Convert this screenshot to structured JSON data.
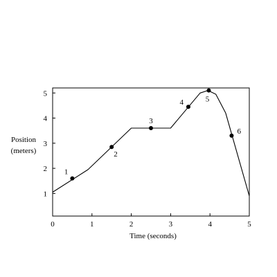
{
  "chart_data": {
    "type": "line",
    "title": "",
    "xlabel": "Time (seconds)",
    "ylabel": [
      "Position",
      "(meters)"
    ],
    "xlim": [
      0,
      5
    ],
    "ylim": [
      0.1,
      5.2
    ],
    "xticks": [
      "0",
      "1",
      "2",
      "3",
      "4",
      "5"
    ],
    "yticks": [
      "1",
      "2",
      "3",
      "4",
      "5"
    ],
    "grid": false,
    "series": [
      {
        "x": [
          0,
          0.9,
          2,
          3,
          3.75,
          3.95,
          4.15,
          4.4,
          5
        ],
        "y": [
          1.05,
          1.95,
          3.6,
          3.6,
          5.0,
          5.1,
          4.95,
          4.2,
          0.9
        ]
      }
    ],
    "points": [
      {
        "label": "1",
        "x": 0.5,
        "y": 1.6
      },
      {
        "label": "2",
        "x": 1.5,
        "y": 2.85
      },
      {
        "label": "3",
        "x": 2.5,
        "y": 3.6
      },
      {
        "label": "4",
        "x": 3.45,
        "y": 4.45
      },
      {
        "label": "5",
        "x": 3.97,
        "y": 5.1
      },
      {
        "label": "6",
        "x": 4.55,
        "y": 3.3
      }
    ],
    "colors": {
      "line": "#000000",
      "points": "#000000",
      "frame": "#000000"
    }
  }
}
